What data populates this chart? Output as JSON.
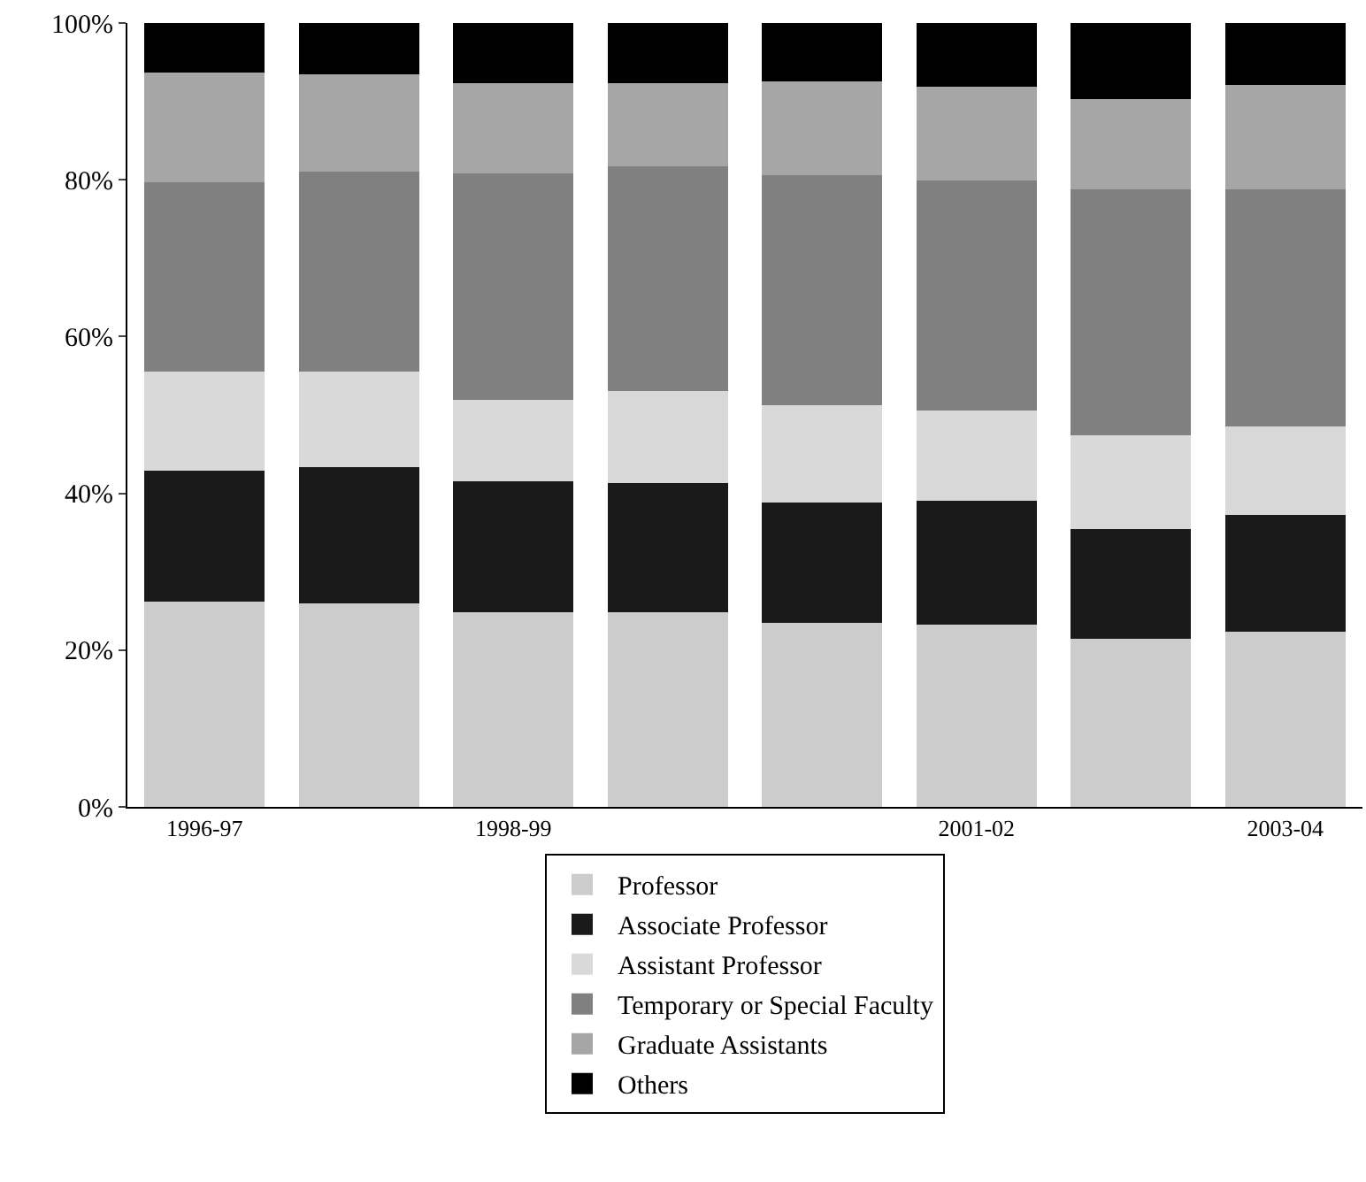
{
  "chart_data": {
    "type": "bar",
    "stacked": true,
    "categories": [
      "1996-97",
      null,
      "1998-99",
      null,
      null,
      "2001-02",
      null,
      "2003-04"
    ],
    "series": [
      {
        "name": "Professor",
        "color": "#cccccc",
        "values": [
          26.2,
          26.0,
          24.8,
          24.8,
          23.5,
          23.3,
          21.4,
          22.3
        ]
      },
      {
        "name": "Associate Professor",
        "color": "#1a1a1a",
        "values": [
          16.7,
          17.3,
          16.7,
          16.5,
          15.3,
          15.8,
          14.0,
          14.9
        ]
      },
      {
        "name": "Assistant Professor",
        "color": "#d9d9d9",
        "values": [
          12.6,
          12.2,
          10.4,
          11.7,
          12.4,
          11.5,
          12.0,
          11.3
        ]
      },
      {
        "name": "Temporary or Special Faculty",
        "color": "#808080",
        "values": [
          24.2,
          25.5,
          28.9,
          28.7,
          29.4,
          29.3,
          31.4,
          30.3
        ]
      },
      {
        "name": "Graduate Assistants",
        "color": "#a6a6a6",
        "values": [
          14.0,
          12.5,
          11.5,
          10.6,
          12.0,
          12.0,
          11.5,
          13.3
        ]
      },
      {
        "name": "Others",
        "color": "#000000",
        "values": [
          6.3,
          6.5,
          7.7,
          7.7,
          7.4,
          8.1,
          9.7,
          7.9
        ]
      }
    ],
    "ylim": [
      0,
      100
    ],
    "yticks": [
      {
        "value": 0,
        "label": "0%"
      },
      {
        "value": 20,
        "label": "20%"
      },
      {
        "value": 40,
        "label": "40%"
      },
      {
        "value": 60,
        "label": "60%"
      },
      {
        "value": 80,
        "label": "80%"
      },
      {
        "value": 100,
        "label": "100%"
      }
    ],
    "legend": "bottom"
  }
}
